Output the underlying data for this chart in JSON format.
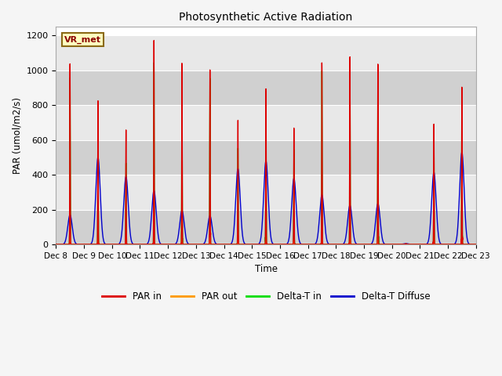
{
  "title": "Photosynthetic Active Radiation",
  "ylabel": "PAR (umol/m2/s)",
  "xlabel": "Time",
  "ylim": [
    0,
    1250
  ],
  "yticks": [
    0,
    200,
    400,
    600,
    800,
    1000,
    1200
  ],
  "xtick_labels": [
    "Dec 8",
    "Dec 9",
    "Dec 10",
    "Dec 11",
    "Dec 12",
    "Dec 13",
    "Dec 14",
    "Dec 15",
    "Dec 16",
    "Dec 17",
    "Dec 18",
    "Dec 19",
    "Dec 20",
    "Dec 21",
    "Dec 22",
    "Dec 23"
  ],
  "annotation_text": "VR_met",
  "colors": {
    "PAR_in": "#dd0000",
    "PAR_out": "#ff9900",
    "Delta_T_in": "#00dd00",
    "Delta_T_Diffuse": "#0000cc"
  },
  "bg_light": "#e8e8e8",
  "bg_dark": "#d0d0d0",
  "grid_color": "#ffffff",
  "par_in_peaks": [
    1035,
    845,
    655,
    1145,
    1045,
    1030,
    700,
    905,
    670,
    1055,
    1050,
    1040,
    5,
    680,
    900
  ],
  "par_out_peaks": [
    120,
    80,
    60,
    120,
    110,
    110,
    85,
    80,
    30,
    100,
    100,
    60,
    5,
    65,
    100
  ],
  "delta_t_peaks": [
    950,
    500,
    480,
    1030,
    935,
    920,
    550,
    700,
    530,
    1005,
    990,
    1000,
    5,
    590,
    870
  ],
  "delta_diff_peaks": [
    170,
    500,
    390,
    310,
    195,
    165,
    435,
    480,
    380,
    285,
    225,
    235,
    5,
    415,
    530
  ],
  "delta_diff_sigma": 0.08,
  "sharp_sigma": 0.008
}
